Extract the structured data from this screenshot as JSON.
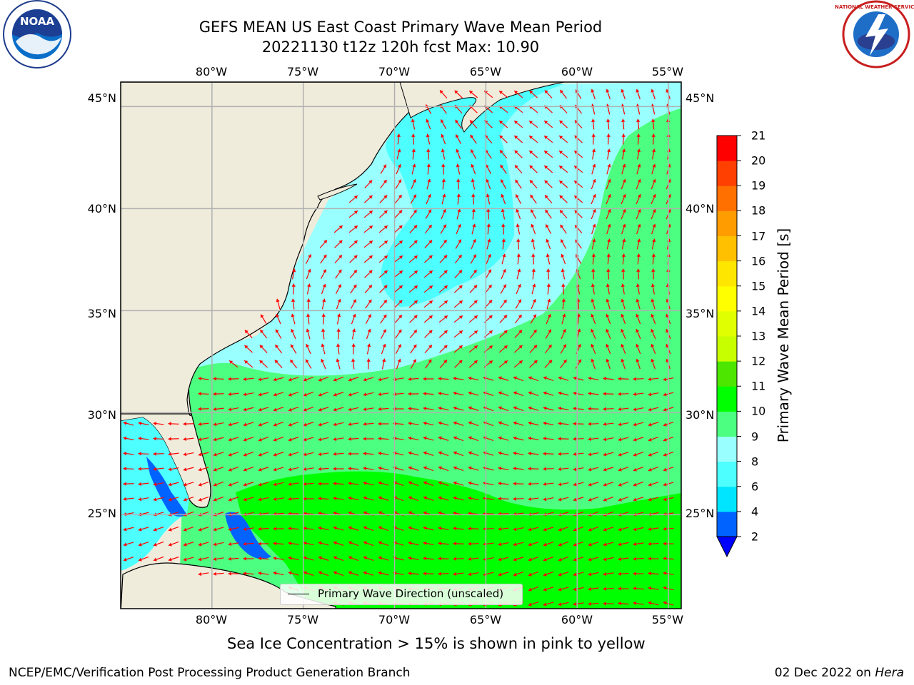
{
  "header": {
    "title_line1": "GEFS MEAN US East Coast Primary Wave Mean Period",
    "title_line2": "20221130 t12z 120h fcst   Max: 10.90"
  },
  "logos": {
    "left": {
      "icon": "noaa-logo-icon",
      "text": "NOAA"
    },
    "right": {
      "icon": "nws-logo-icon",
      "text": "NATIONAL WEATHER SERVICE"
    }
  },
  "map": {
    "lon_range": [
      -85,
      -54.3
    ],
    "lat_range": [
      20.4,
      46.2
    ],
    "lon_ticks": [
      "80°W",
      "75°W",
      "70°W",
      "65°W",
      "60°W",
      "55°W"
    ],
    "lat_ticks": [
      "45°N",
      "40°N",
      "35°N",
      "30°N",
      "25°N"
    ],
    "gridlines": true,
    "colors": {
      "land": "#efecdc",
      "coastline": "#000000",
      "arrow": "#ff0000",
      "grid": "#b0b0b0"
    }
  },
  "legend": {
    "label": "Primary Wave Direction (unscaled)",
    "placement": "bottom-center"
  },
  "colorbar": {
    "label": "Primary Wave Mean Period [s]",
    "ticks": [
      "2",
      "4",
      "6",
      "8",
      "9",
      "10",
      "11",
      "12",
      "13",
      "14",
      "15",
      "16",
      "17",
      "18",
      "19",
      "20",
      "21"
    ],
    "colors": [
      "#0063ff",
      "#00e5ff",
      "#4dffff",
      "#99ffff",
      "#4dff80",
      "#00ff00",
      "#4ce600",
      "#c8ff00",
      "#e0ff00",
      "#ffff00",
      "#ffe600",
      "#ffc000",
      "#ff9d00",
      "#ff7000",
      "#ff4000",
      "#ff0000"
    ],
    "under_color": "#0000ff"
  },
  "subtitle": "Sea Ice Concentration > 15% is shown in pink to yellow",
  "footer": {
    "left": "NCEP/EMC/Verification Post Processing Product Generation Branch",
    "right_prefix": "02 Dec 2022 on ",
    "right_machine": "Hera"
  }
}
